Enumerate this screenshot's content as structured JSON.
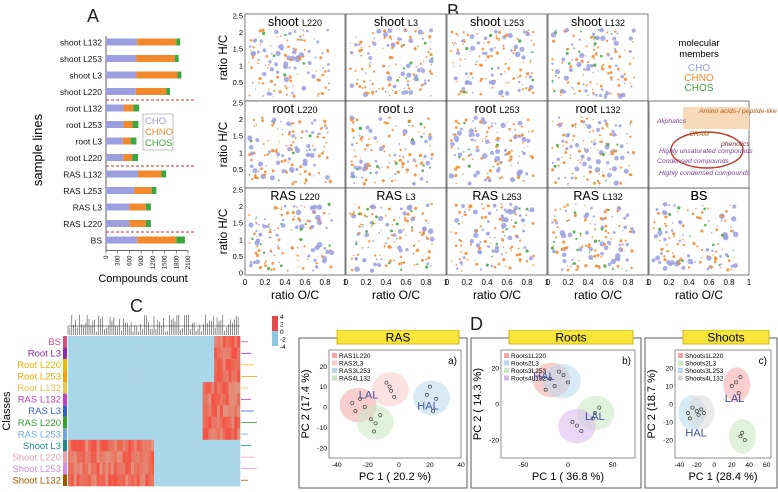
{
  "panels": {
    "A": "A",
    "B": "B",
    "C": "C",
    "D": "D"
  },
  "colors": {
    "CHO": "#9b9fe0",
    "CHNO": "#f28a2c",
    "CHOS": "#3fa53f",
    "dash": "#d03030"
  },
  "chart_data": [
    {
      "id": "A",
      "type": "bar",
      "stacked": true,
      "orientation": "horizontal",
      "xlabel": "Compounds count",
      "ylabel": "sample lines",
      "xlim": [
        0,
        2100
      ],
      "xticks": [
        "0",
        "300",
        "600",
        "900",
        "1200",
        "1500",
        "1800",
        "2100"
      ],
      "categories": [
        "shoot L132",
        "shoot L253",
        "shoot L3",
        "shoot L220",
        "root L132",
        "root L253",
        "root L3",
        "root L220",
        "RAS L132",
        "RAS L253",
        "RAS L3",
        "RAS L220",
        "BS"
      ],
      "series": [
        {
          "name": "CHO",
          "values": [
            800,
            780,
            780,
            760,
            450,
            450,
            430,
            440,
            820,
            720,
            600,
            600,
            800
          ]
        },
        {
          "name": "CHNO",
          "values": [
            1000,
            980,
            1050,
            780,
            250,
            230,
            200,
            230,
            600,
            450,
            420,
            420,
            1000
          ]
        },
        {
          "name": "CHOS",
          "values": [
            100,
            100,
            100,
            100,
            150,
            150,
            150,
            150,
            120,
            120,
            130,
            130,
            220
          ]
        }
      ],
      "legend": [
        "CHO",
        "CHNO",
        "CHOS"
      ]
    },
    {
      "id": "B",
      "type": "scatter",
      "rows": [
        [
          "shoot L220",
          "shoot L3",
          "shoot L253",
          "shoot L132"
        ],
        [
          "root L220",
          "root L3",
          "root L253",
          "root L132"
        ],
        [
          "RAS L220",
          "RAS L3",
          "RAS L253",
          "RAS L132",
          "BS"
        ]
      ],
      "xlabel": "ratio O/C",
      "ylabel": "ratio H/C",
      "xlim": [
        0,
        1
      ],
      "ylim": [
        0,
        2.5
      ],
      "xticks": [
        "0",
        "0.2",
        "0.4",
        "0.6",
        "0.8",
        "1"
      ],
      "yticks": [
        "0",
        "0.5",
        "1",
        "1.5",
        "2",
        "2.5"
      ],
      "legend_title": "molecular members",
      "legend": [
        "CHO",
        "CHNO",
        "CHOS"
      ],
      "region_labels": [
        "Amino acids-/ peptide-like",
        "Aliphatics",
        "CRAM",
        "phenolics",
        "Highly unsaturated compounds",
        "Condensed compounds",
        "Highly condensed compounds"
      ]
    },
    {
      "id": "C",
      "type": "heatmap",
      "ylabel": "Classes",
      "rows": [
        "BS",
        "Root L3",
        "Root L220",
        "Root L253",
        "Root L132",
        "RAS L132",
        "RAS L3",
        "RAS L220",
        "RAS L253",
        "Shoot L3",
        "Shoot L220",
        "Shoot L253",
        "Shoot L132"
      ],
      "row_colors": [
        "#d94f7a",
        "#8a2ca3",
        "#e6b800",
        "#f2a400",
        "#e8c34a",
        "#c03fc0",
        "#3a5ec9",
        "#33a02c",
        "#6aa9e0",
        "#1b8c8c",
        "#e8a0b0",
        "#d08fe0",
        "#a05a00"
      ],
      "colorbar_ticks": [
        "4",
        "2",
        "0",
        "-2",
        "-4"
      ]
    },
    {
      "id": "D",
      "type": "scatter",
      "plots": [
        {
          "title": "RAS",
          "tag": "a)",
          "xlabel": "PC 1 ( 20.2 %)",
          "ylabel": "PC 2 (17.4 %)",
          "xlim": [
            -45,
            40
          ],
          "ylim": [
            -25,
            28
          ],
          "xticks": [
            "-40",
            "-20",
            "0",
            "20",
            "40"
          ],
          "yticks": [
            "20",
            "10",
            "0",
            "-10",
            "-20"
          ],
          "series": [
            {
              "name": "RAS1L220",
              "color": "#f4a6a6",
              "points": [
                [
                  -30,
                  2
                ],
                [
                  -25,
                  4
                ],
                [
                  -22,
                  0
                ],
                [
                  -28,
                  -2
                ]
              ]
            },
            {
              "name": "RAS2L3",
              "color": "#f7c9c9",
              "points": [
                [
                  -5,
                  8
                ],
                [
                  -8,
                  12
                ],
                [
                  -3,
                  5
                ],
                [
                  -6,
                  10
                ]
              ]
            },
            {
              "name": "RAS3L253",
              "color": "#b8d8ee",
              "points": [
                [
                  20,
                  10
                ],
                [
                  24,
                  4
                ],
                [
                  22,
                  -2
                ],
                [
                  18,
                  6
                ]
              ]
            },
            {
              "name": "RAS4L132",
              "color": "#c8e8c0",
              "points": [
                [
                  -15,
                  -8
                ],
                [
                  -12,
                  -4
                ],
                [
                  -16,
                  -12
                ],
                [
                  -18,
                  -6
                ]
              ]
            }
          ],
          "annotations": [
            "LAL",
            "HAL"
          ]
        },
        {
          "title": "Roots",
          "tag": "b)",
          "xlabel": "PC 1 ( 36.8 %)",
          "ylabel": "PC 2 ( 14.3 %)",
          "xlim": [
            -75,
            75
          ],
          "ylim": [
            -30,
            30
          ],
          "xticks": [
            "-50",
            "0",
            "50"
          ],
          "yticks": [
            "20",
            "0",
            "-20"
          ],
          "series": [
            {
              "name": "Roots1L220",
              "color": "#f4a6a6",
              "points": [
                [
                  -20,
                  14
                ],
                [
                  -10,
                  18
                ],
                [
                  -25,
                  8
                ]
              ]
            },
            {
              "name": "Roots2L3",
              "color": "#b8d8ee",
              "points": [
                [
                  -15,
                  10
                ],
                [
                  -5,
                  16
                ],
                [
                  0,
                  12
                ]
              ]
            },
            {
              "name": "Roots3L253",
              "color": "#c8e8c0",
              "points": [
                [
                  30,
                  -5
                ],
                [
                  35,
                  -2
                ],
                [
                  28,
                  -8
                ]
              ]
            },
            {
              "name": "Roots4L132",
              "color": "#d8b8ee",
              "points": [
                [
                  10,
                  -12
                ],
                [
                  15,
                  -15
                ],
                [
                  5,
                  -10
                ]
              ]
            }
          ],
          "annotations": [
            "HAL",
            "LAL"
          ]
        },
        {
          "title": "Shoots",
          "tag": "c)",
          "xlabel": "PC 1 (28.4 %)",
          "ylabel": "PC 2 (18.7 %)",
          "xlim": [
            -45,
            65
          ],
          "ylim": [
            -30,
            30
          ],
          "xticks": [
            "-40",
            "-20",
            "0",
            "20",
            "40",
            "60"
          ],
          "yticks": [
            "20",
            "10",
            "0",
            "-10",
            "-20"
          ],
          "series": [
            {
              "name": "Shoots1L220",
              "color": "#f4a6a6",
              "points": [
                [
                  20,
                  10
                ],
                [
                  25,
                  12
                ],
                [
                  28,
                  6
                ],
                [
                  30,
                  15
                ]
              ]
            },
            {
              "name": "Shoots2L3",
              "color": "#c8e8c0",
              "points": [
                [
                  30,
                  -18
                ],
                [
                  35,
                  -20
                ],
                [
                  32,
                  -16
                ]
              ]
            },
            {
              "name": "Shoots3L253",
              "color": "#b8d8ee",
              "points": [
                [
                  -30,
                  -5
                ],
                [
                  -25,
                  -2
                ],
                [
                  -28,
                  -8
                ],
                [
                  -20,
                  -4
                ]
              ]
            },
            {
              "name": "Shoots4L132",
              "color": "#d8d8d8",
              "points": [
                [
                  -18,
                  -6
                ],
                [
                  -15,
                  -3
                ],
                [
                  -12,
                  -5
                ]
              ]
            }
          ],
          "annotations": [
            "LAL",
            "HAL"
          ]
        }
      ]
    }
  ]
}
